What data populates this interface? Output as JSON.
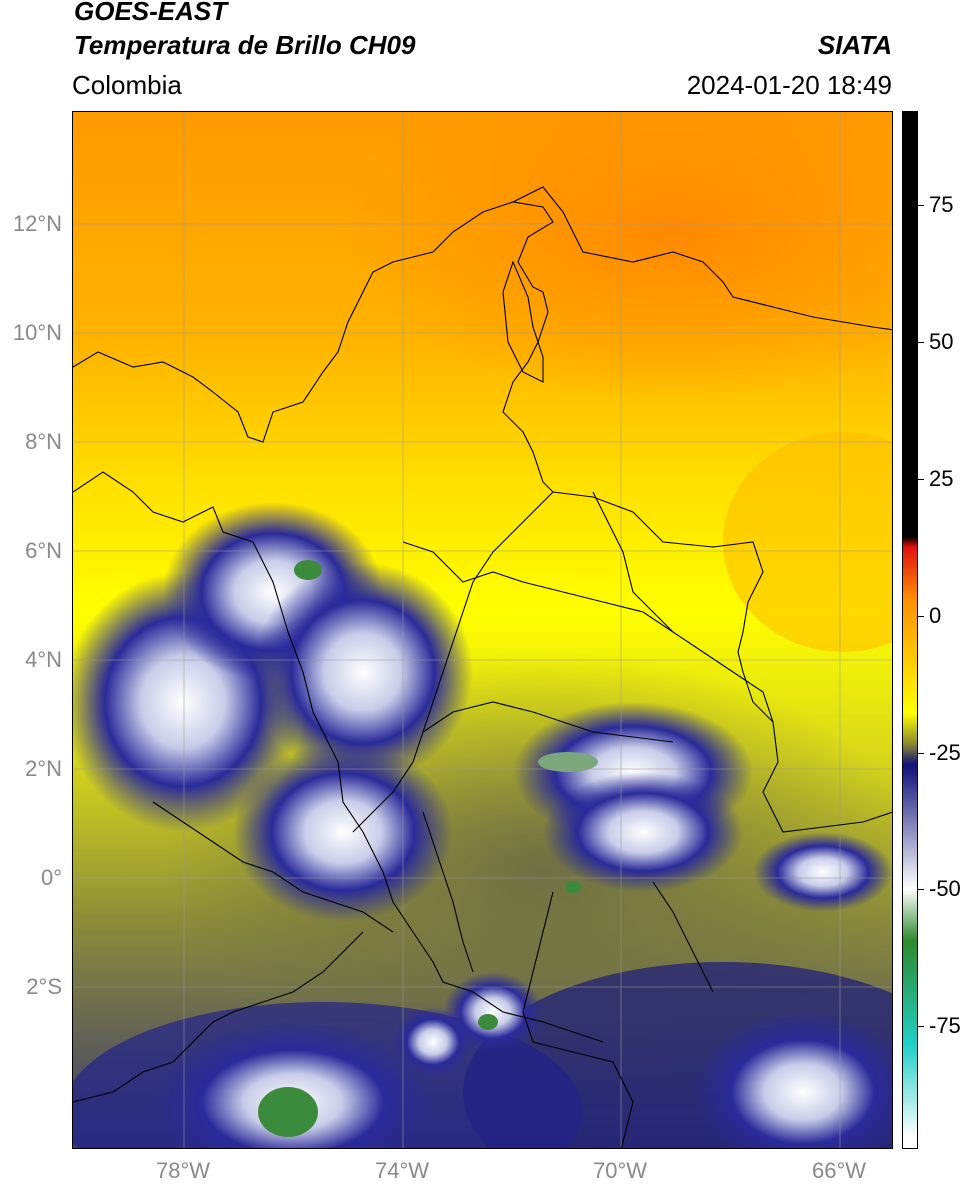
{
  "header": {
    "title_line1": "GOES-EAST",
    "title_line2": "Temperatura de Brillo CH09",
    "region": "Colombia",
    "agency": "SIATA",
    "timestamp": "2024-01-20 18:49"
  },
  "map": {
    "lat_labels": [
      "12°N",
      "10°N",
      "8°N",
      "6°N",
      "4°N",
      "2°N",
      "0°",
      "2°S"
    ],
    "lon_labels": [
      "78°W",
      "74°W",
      "70°W",
      "66°W"
    ],
    "colors": {
      "warm": "#ff8c00",
      "mid": "#ffd400",
      "yellow": "#ffff00",
      "olive": "#8c8c3a",
      "navy": "#101070",
      "white": "#ffffff",
      "green": "#3c8a3c"
    }
  },
  "colorbar": {
    "tick_labels": [
      "75",
      "50",
      "25",
      "0",
      "-25",
      "-50",
      "-75"
    ],
    "stops": [
      "#000000",
      "#000000",
      "#e01010",
      "#ff9000",
      "#ffff00",
      "#8a8a30",
      "#10107a",
      "#ffffff",
      "#2c8a2c",
      "#20d0c8",
      "#ffffff"
    ]
  }
}
